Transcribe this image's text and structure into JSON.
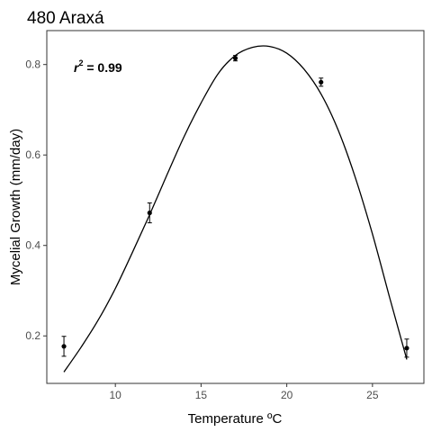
{
  "chart_data": {
    "type": "scatter",
    "title": "480 Araxá",
    "xlabel": "Temperature ºC",
    "ylabel": "Mycelial Growth (mm/day)",
    "xlim": [
      6.0,
      28.0
    ],
    "ylim": [
      0.095,
      0.875
    ],
    "x_ticks": [
      10,
      15,
      20,
      25
    ],
    "y_ticks": [
      0.2,
      0.4,
      0.6,
      0.8
    ],
    "x_tick_labels": [
      "10",
      "15",
      "20",
      "25"
    ],
    "y_tick_labels": [
      "0.2",
      "0.4",
      "0.6",
      "0.8"
    ],
    "points": [
      {
        "x": 7,
        "y": 0.177,
        "err": 0.022
      },
      {
        "x": 12,
        "y": 0.472,
        "err": 0.022
      },
      {
        "x": 17,
        "y": 0.814,
        "err": 0.006
      },
      {
        "x": 22,
        "y": 0.761,
        "err": 0.009
      },
      {
        "x": 27,
        "y": 0.173,
        "err": 0.02
      }
    ],
    "fit_curve": {
      "x": [
        7,
        8,
        9,
        10,
        11,
        12,
        13,
        14,
        15,
        16,
        17,
        18,
        19,
        20,
        21,
        22,
        23,
        24,
        25,
        26,
        27
      ],
      "y": [
        0.12,
        0.175,
        0.235,
        0.305,
        0.385,
        0.468,
        0.555,
        0.64,
        0.715,
        0.78,
        0.82,
        0.838,
        0.84,
        0.825,
        0.79,
        0.735,
        0.655,
        0.55,
        0.425,
        0.285,
        0.148
      ]
    },
    "annotation": {
      "r_symbol": "r",
      "superscript": "2",
      "value_text": " = 0.99"
    },
    "grid": false,
    "legend": "none"
  }
}
